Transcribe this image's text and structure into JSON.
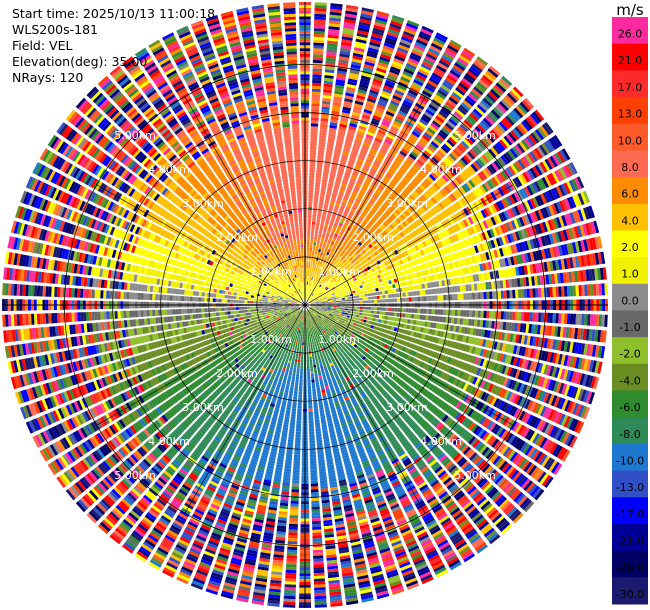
{
  "info": {
    "start_time": "Start time: 2025/10/13 11:00:18",
    "instrument": "WLS200s-181",
    "field": "Field: VEL",
    "elevation": "Elevation(deg): 35.00",
    "nrays": "NRays: 120"
  },
  "colorbar": {
    "unit": "m/s",
    "labels": [
      "26.0",
      "21.0",
      "17.0",
      "13.0",
      "10.0",
      "8.0",
      "6.0",
      "4.0",
      "2.0",
      "1.0",
      "0.0",
      "-1.0",
      "-2.0",
      "-4.0",
      "-6.0",
      "-8.0",
      "-10.0",
      "-13.0",
      "-17.0",
      "-21.0",
      "-26.0",
      "-30.0"
    ],
    "colors": [
      "#ff2aa0",
      "#ff0000",
      "#ff2a2a",
      "#ff4000",
      "#ff5a2a",
      "#ff6a50",
      "#ff8c00",
      "#ffc000",
      "#ffff00",
      "#f0f000",
      "#8c8c8c",
      "#696969",
      "#8fbf2a",
      "#6b8e23",
      "#2e8b2e",
      "#2e8b57",
      "#1e78d0",
      "#3050c8",
      "#0000ff",
      "#000096",
      "#000064",
      "#1a1a6e"
    ]
  },
  "chart_data": {
    "type": "heatmap",
    "field": "VEL",
    "unit": "m/s",
    "n_rays": 120,
    "elevation_deg": 35.0,
    "range_rings_km": [
      1.0,
      2.0,
      3.0,
      4.0,
      5.0
    ],
    "range_labels": [
      "1.00km",
      "2.00km",
      "3.00km",
      "4.00km",
      "5.00km"
    ],
    "max_range_km": 6.3,
    "color_levels": [
      -30.0,
      -26.0,
      -21.0,
      -17.0,
      -13.0,
      -10.0,
      -8.0,
      -6.0,
      -4.0,
      -2.0,
      -1.0,
      0.0,
      1.0,
      2.0,
      4.0,
      6.0,
      8.0,
      10.0,
      13.0,
      17.0,
      21.0,
      26.0
    ],
    "wind_pattern": {
      "max_toward_azimuth_deg": 180,
      "max_away_azimuth_deg": 0,
      "approx_peak_speed_ms": 9.0,
      "clean_signal_range_km": 3.7
    }
  }
}
